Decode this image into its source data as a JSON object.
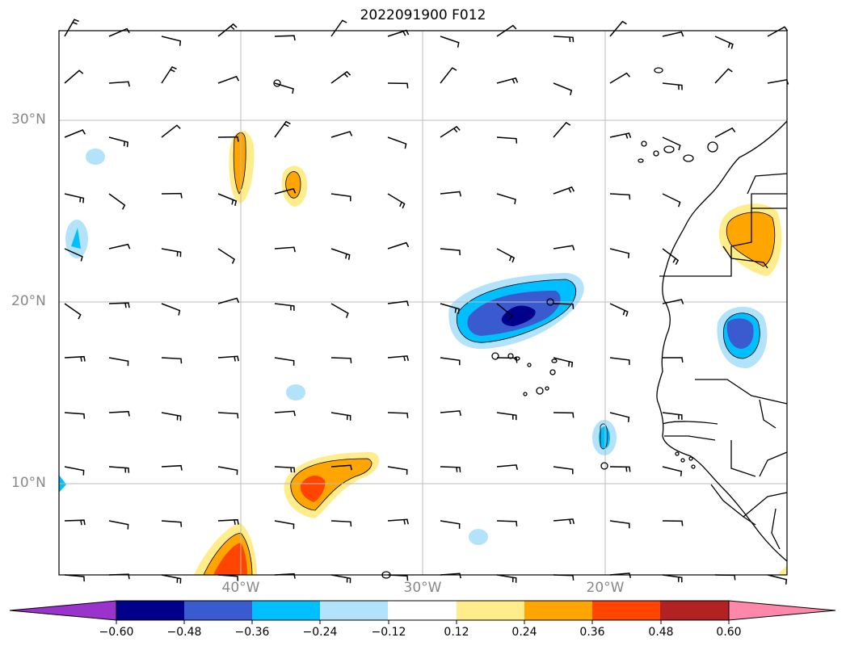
{
  "title": "2022091900 F012",
  "lat_labels": [
    "30°N",
    "20°N",
    "10°N"
  ],
  "lon_labels": [
    "40°W",
    "30°W",
    "20°W"
  ],
  "colorbar": {
    "levels": [
      "−0.60",
      "−0.48",
      "−0.36",
      "−0.24",
      "−0.12",
      "0.12",
      "0.24",
      "0.36",
      "0.48",
      "0.60"
    ],
    "colors": [
      "#9933cc",
      "#00008b",
      "#3a5bd0",
      "#00bfff",
      "#b3e3fa",
      "#ffffff",
      "#ffec8b",
      "#ffa500",
      "#ff4500",
      "#b22222",
      "#ff88aa"
    ]
  },
  "map": {
    "lon_range": [
      -50,
      -10
    ],
    "lat_range": [
      5,
      35
    ],
    "grid_lons": [
      -40,
      -30,
      -20
    ],
    "grid_lats": [
      30,
      20,
      10
    ]
  }
}
